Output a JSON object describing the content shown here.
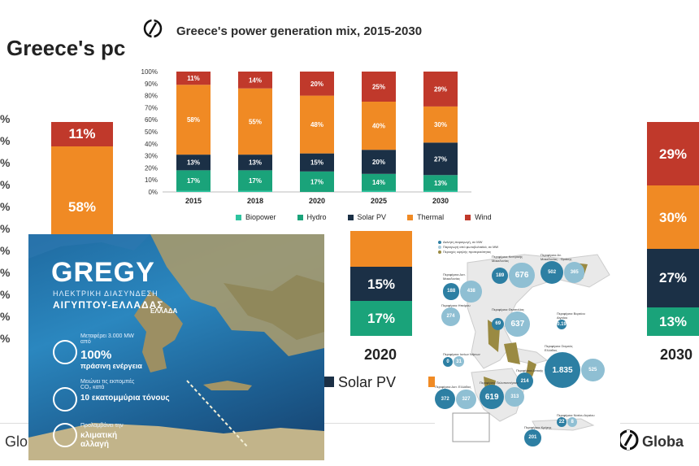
{
  "background": {
    "title": "Greece's pc",
    "pct_ticks": [
      "%",
      "%",
      "%",
      "%",
      "%",
      "%",
      "%",
      "%",
      "%",
      "%",
      "%"
    ],
    "col2015": {
      "wind": "11%",
      "thermal": "58%"
    },
    "col2020": {
      "solar": "15%",
      "hydro": "17%",
      "year": "2020"
    },
    "col2030": {
      "wind": "29%",
      "thermal": "30%",
      "solar": "27%",
      "hydro": "13%",
      "year": "2030"
    },
    "legend_solar": "Solar PV",
    "footer_left": "Glob",
    "footer_right": "Globa"
  },
  "chart_data": {
    "type": "bar",
    "title": "Greece's power generation mix, 2015-2030",
    "stacked": true,
    "categories": [
      "2015",
      "2018",
      "2020",
      "2025",
      "2030"
    ],
    "ylim": [
      0,
      100
    ],
    "yticks": [
      "0%",
      "10%",
      "20%",
      "30%",
      "40%",
      "50%",
      "60%",
      "70%",
      "80%",
      "90%",
      "100%"
    ],
    "grid": false,
    "legend_position": "bottom",
    "series": [
      {
        "name": "Biopower",
        "color": "#2ec4a0",
        "values": [
          1,
          1,
          0,
          1,
          1
        ],
        "labels": [
          "",
          "",
          "",
          "",
          ""
        ]
      },
      {
        "name": "Hydro",
        "color": "#1aa37a",
        "values": [
          17,
          17,
          17,
          14,
          13
        ],
        "labels": [
          "17%",
          "17%",
          "17%",
          "14%",
          "13%"
        ]
      },
      {
        "name": "Solar PV",
        "color": "#1b3046",
        "values": [
          13,
          13,
          15,
          20,
          27
        ],
        "labels": [
          "13%",
          "13%",
          "15%",
          "20%",
          "27%"
        ]
      },
      {
        "name": "Thermal",
        "color": "#f08a24",
        "values": [
          58,
          55,
          48,
          40,
          30
        ],
        "labels": [
          "58%",
          "55%",
          "48%",
          "40%",
          "30%"
        ]
      },
      {
        "name": "Wind",
        "color": "#c0392b",
        "values": [
          11,
          14,
          20,
          25,
          29
        ],
        "labels": [
          "11%",
          "14%",
          "20%",
          "25%",
          "29%"
        ]
      }
    ]
  },
  "gregy_panel": {
    "logo": "GREGY",
    "subtitle1": "ΗΛΕΚΤΡΙΚΗ ΔΙΑΣΥΝΔΕΣΗ",
    "subtitle2": "ΑΙΓΥΠΤΟΥ-ΕΛΛΑΔΑΣ",
    "country_label": "ΕΛΛΑΔΑ",
    "info1_small": "Μεταφέρει 3.000 MW από",
    "info1_big": "100%",
    "info1_tail": "πράσινη ενέργεια",
    "info2_small": "Μειώνει τις εκπομπές CO₂ κατά",
    "info2_big": "10 εκατομμύρια τόνους",
    "info3_small": "Προλαμβάνει την",
    "info3_big": "κλιματική αλλαγή"
  },
  "region_map": {
    "legend": [
      "Ακίνητη παραγωγή, σε MW",
      "Παραγωγή από φωτοβολταϊκά, σε MW",
      "Περιοχές υψηλής προτεραιότητας"
    ],
    "bubbles": [
      {
        "label": "Περιφέρεια Κεντρικής Μακεδονίας",
        "values": [
          "189",
          "676"
        ]
      },
      {
        "label": "Περιφέρεια Αν. Μακεδονίας - Θράκης",
        "values": [
          "502",
          "365"
        ]
      },
      {
        "label": "Περιφέρεια Δυτ. Μακεδονίας",
        "values": [
          "188",
          "438"
        ]
      },
      {
        "label": "Περιφέρεια Ηπείρου",
        "values": [
          "",
          "274"
        ]
      },
      {
        "label": "Περιφέρεια Θεσσαλίας",
        "values": [
          "69",
          "637"
        ]
      },
      {
        "label": "Περιφέρεια Βορείου Αιγαίου",
        "values": [
          "0.19"
        ]
      },
      {
        "label": "Περιφέρεια Στερεάς Ελλάδας",
        "values": [
          "1.835",
          "525"
        ]
      },
      {
        "label": "Περιφέρεια Ιονίων Νήσων",
        "values": [
          "0",
          "31"
        ]
      },
      {
        "label": "Περιφέρεια Αττικής",
        "values": [
          "214"
        ]
      },
      {
        "label": "Περιφέρεια Δυτ. Ελλάδας",
        "values": [
          "372",
          "327"
        ]
      },
      {
        "label": "Περιφέρεια Πελοποννήσου",
        "values": [
          "619",
          "313"
        ]
      },
      {
        "label": "Περιφέρεια Νοτίου Αιγαίου",
        "values": [
          "22",
          "8"
        ]
      },
      {
        "label": "Περιφέρεια Κρήτης",
        "values": [
          "201"
        ]
      }
    ]
  }
}
